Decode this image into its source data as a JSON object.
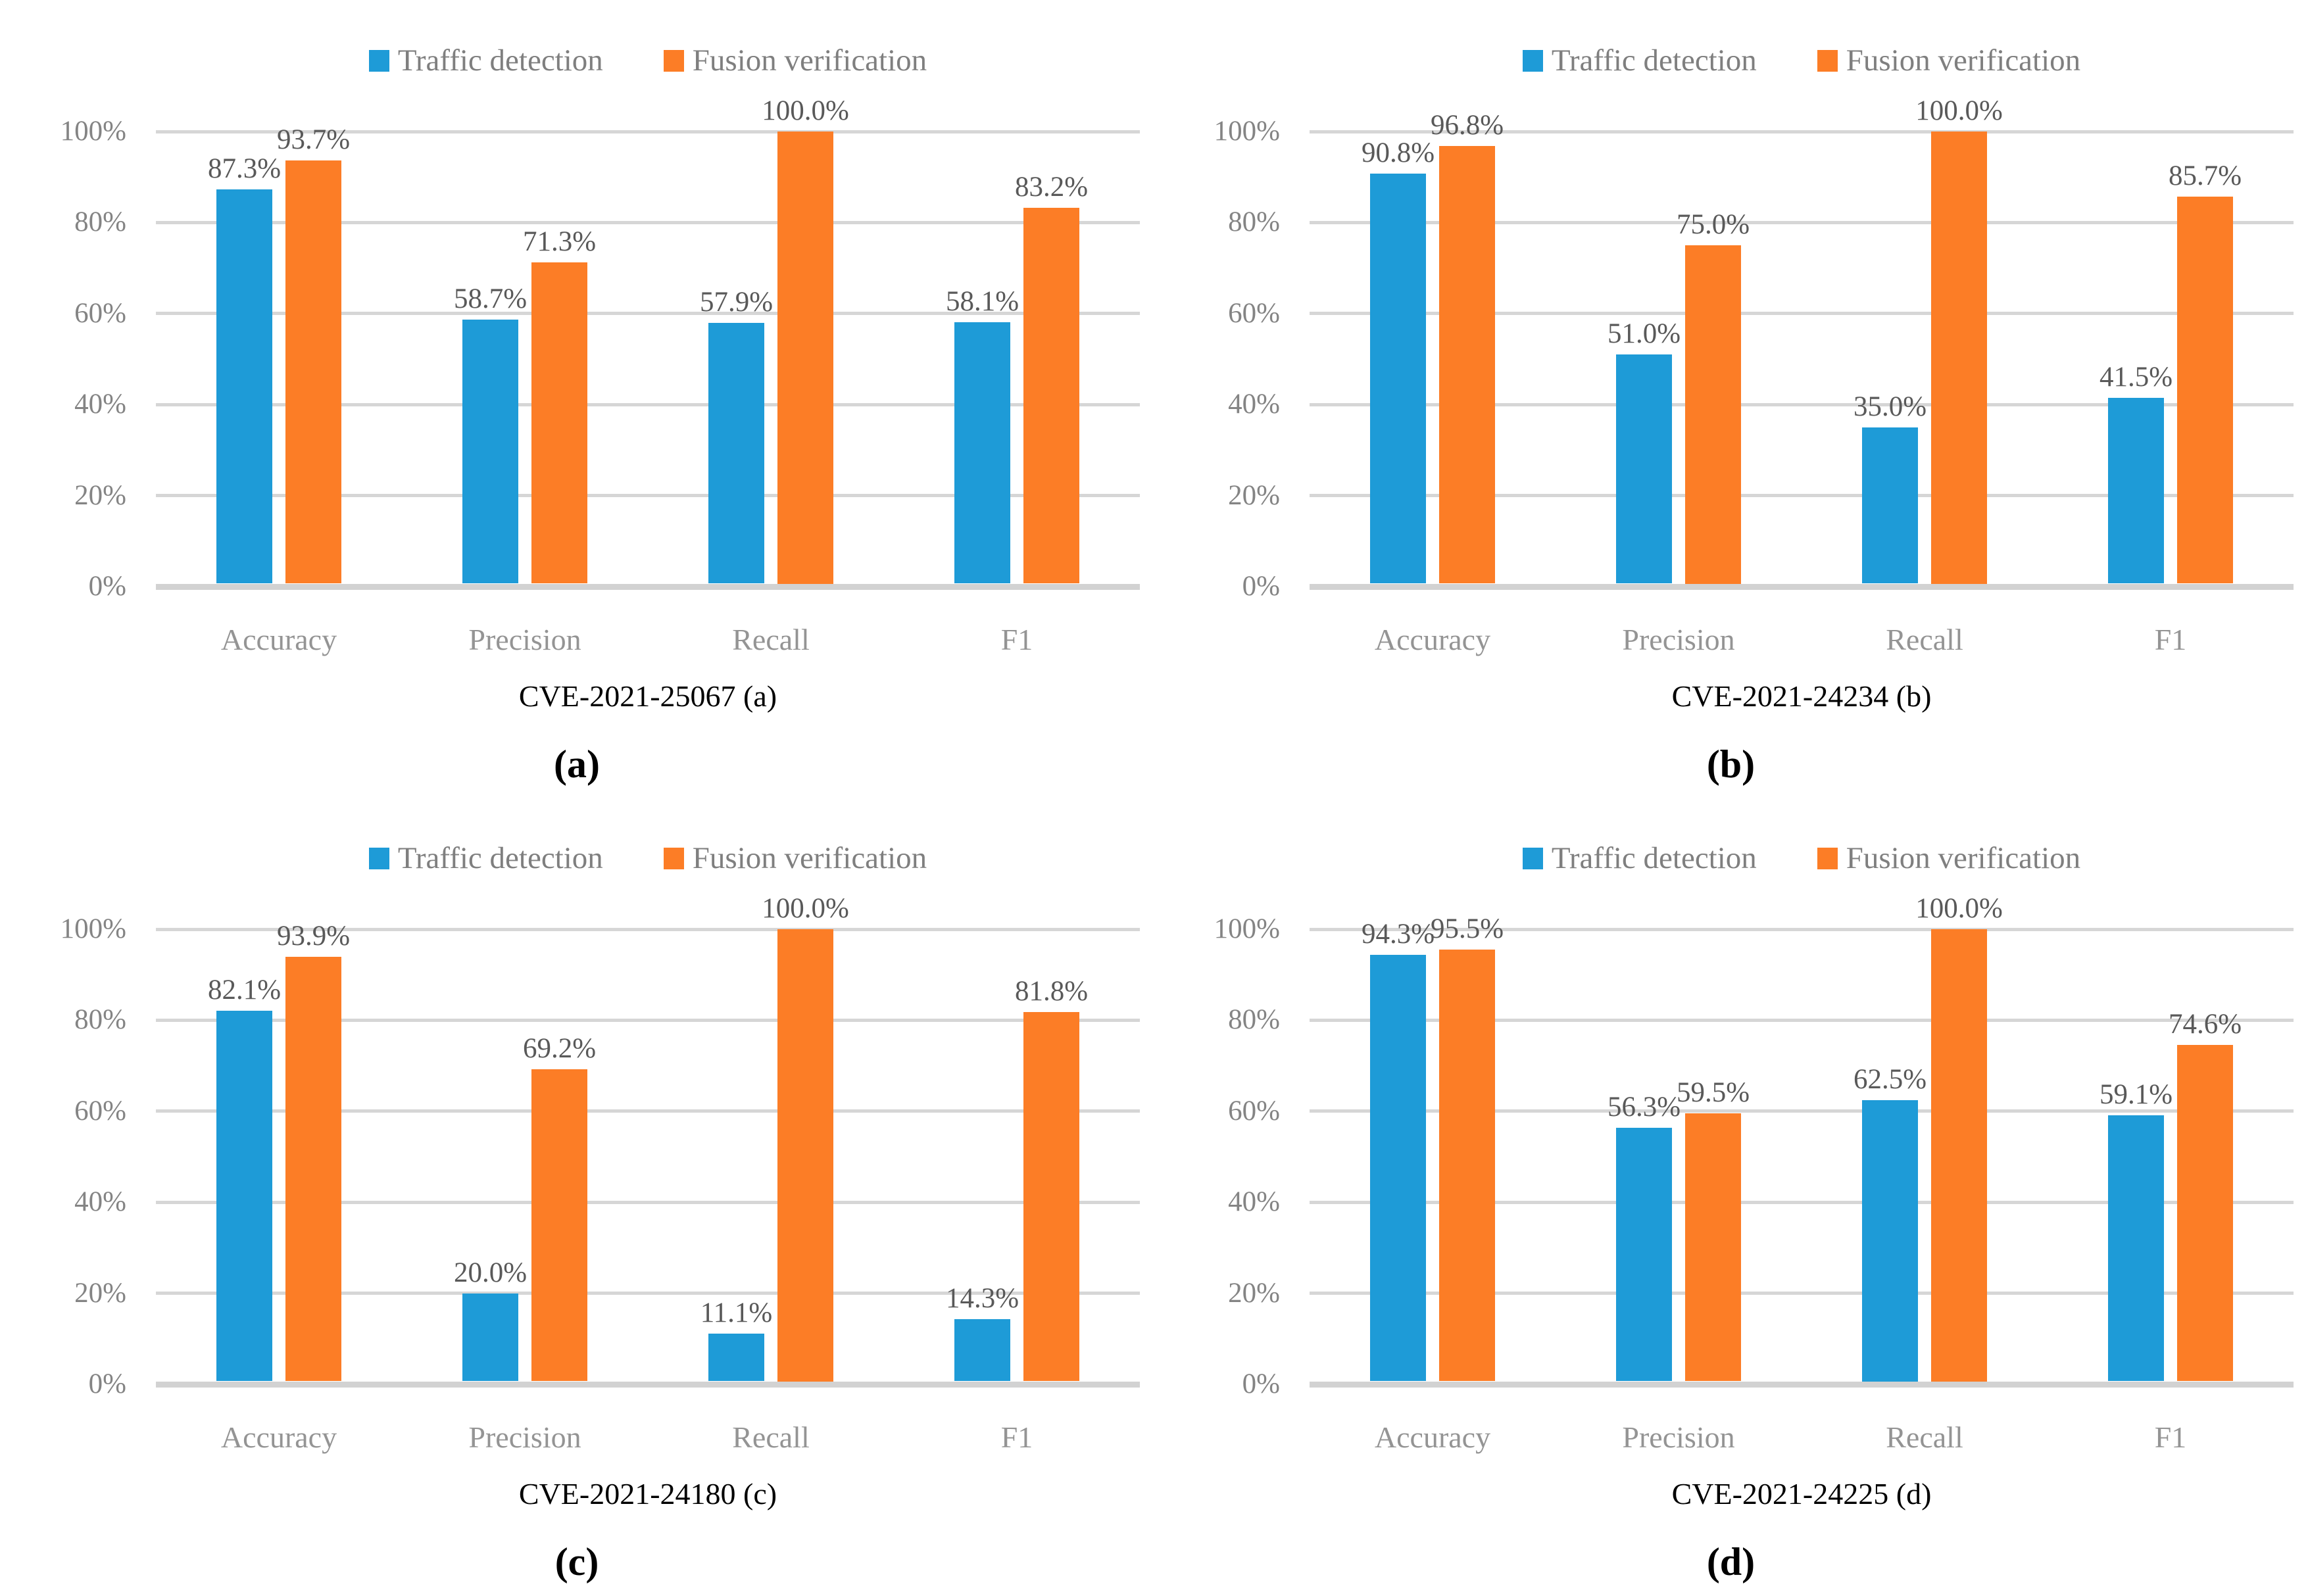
{
  "figure": {
    "background": "#ffffff",
    "legend_items": [
      {
        "key": "traffic",
        "label": "Traffic detection",
        "color": "#1E9BD7"
      },
      {
        "key": "fusion",
        "label": "Fusion verification",
        "color": "#FC7D26"
      }
    ],
    "colors": {
      "traffic_blue": "#1E9BD7",
      "fusion_orange": "#FC7D26",
      "gridline": "#D6D6D6",
      "axis_line": "#D2D2D2",
      "tick_label": "#848484",
      "category_label": "#949494",
      "data_label": "#595959",
      "legend_text": "#7F7F7F",
      "title_text": "#000000"
    }
  },
  "chart_data": [
    {
      "type": "bar",
      "title": "CVE-2021-25067 (a)",
      "caption": "(a)",
      "categories": [
        "Accuracy",
        "Precision",
        "Recall",
        "F1"
      ],
      "series": [
        {
          "name": "Traffic detection",
          "color": "#1E9BD7",
          "values": [
            87.3,
            58.7,
            57.9,
            58.1
          ],
          "labels": [
            "87.3%",
            "58.7%",
            "57.9%",
            "58.1%"
          ]
        },
        {
          "name": "Fusion verification",
          "color": "#FC7D26",
          "values": [
            93.7,
            71.3,
            100.0,
            83.2
          ],
          "labels": [
            "93.7%",
            "71.3%",
            "100.0%",
            "83.2%"
          ]
        }
      ],
      "xlabel": "",
      "ylabel": "",
      "ylim": [
        0,
        100
      ],
      "yticks": [
        100,
        80,
        60,
        40,
        20,
        0
      ],
      "ytick_labels": [
        "100%",
        "80%",
        "60%",
        "40%",
        "20%",
        "0%"
      ],
      "grid": true,
      "legend_position": "top"
    },
    {
      "type": "bar",
      "title": "CVE-2021-24234 (b)",
      "caption": "(b)",
      "categories": [
        "Accuracy",
        "Precision",
        "Recall",
        "F1"
      ],
      "series": [
        {
          "name": "Traffic detection",
          "color": "#1E9BD7",
          "values": [
            90.8,
            51.0,
            35.0,
            41.5
          ],
          "labels": [
            "90.8%",
            "51.0%",
            "35.0%",
            "41.5%"
          ]
        },
        {
          "name": "Fusion verification",
          "color": "#FC7D26",
          "values": [
            96.8,
            75.0,
            100.0,
            85.7
          ],
          "labels": [
            "96.8%",
            "75.0%",
            "100.0%",
            "85.7%"
          ]
        }
      ],
      "xlabel": "",
      "ylabel": "",
      "ylim": [
        0,
        100
      ],
      "yticks": [
        100,
        80,
        60,
        40,
        20,
        0
      ],
      "ytick_labels": [
        "100%",
        "80%",
        "60%",
        "40%",
        "20%",
        "0%"
      ],
      "grid": true,
      "legend_position": "top"
    },
    {
      "type": "bar",
      "title": "CVE-2021-24180 (c)",
      "caption": "(c)",
      "categories": [
        "Accuracy",
        "Precision",
        "Recall",
        "F1"
      ],
      "series": [
        {
          "name": "Traffic detection",
          "color": "#1E9BD7",
          "values": [
            82.1,
            20.0,
            11.1,
            14.3
          ],
          "labels": [
            "82.1%",
            "20.0%",
            "11.1%",
            "14.3%"
          ]
        },
        {
          "name": "Fusion verification",
          "color": "#FC7D26",
          "values": [
            93.9,
            69.2,
            100.0,
            81.8
          ],
          "labels": [
            "93.9%",
            "69.2%",
            "100.0%",
            "81.8%"
          ]
        }
      ],
      "xlabel": "",
      "ylabel": "",
      "ylim": [
        0,
        100
      ],
      "yticks": [
        100,
        80,
        60,
        40,
        20,
        0
      ],
      "ytick_labels": [
        "100%",
        "80%",
        "60%",
        "40%",
        "20%",
        "0%"
      ],
      "grid": true,
      "legend_position": "top"
    },
    {
      "type": "bar",
      "title": "CVE-2021-24225 (d)",
      "caption": "(d)",
      "categories": [
        "Accuracy",
        "Precision",
        "Recall",
        "F1"
      ],
      "series": [
        {
          "name": "Traffic detection",
          "color": "#1E9BD7",
          "values": [
            94.3,
            56.3,
            62.5,
            59.1
          ],
          "labels": [
            "94.3%",
            "56.3%",
            "62.5%",
            "59.1%"
          ]
        },
        {
          "name": "Fusion verification",
          "color": "#FC7D26",
          "values": [
            95.5,
            59.5,
            100.0,
            74.6
          ],
          "labels": [
            "95.5%",
            "59.5%",
            "100.0%",
            "74.6%"
          ]
        }
      ],
      "xlabel": "",
      "ylabel": "",
      "ylim": [
        0,
        100
      ],
      "yticks": [
        100,
        80,
        60,
        40,
        20,
        0
      ],
      "ytick_labels": [
        "100%",
        "80%",
        "60%",
        "40%",
        "20%",
        "0%"
      ],
      "grid": true,
      "legend_position": "top"
    }
  ]
}
